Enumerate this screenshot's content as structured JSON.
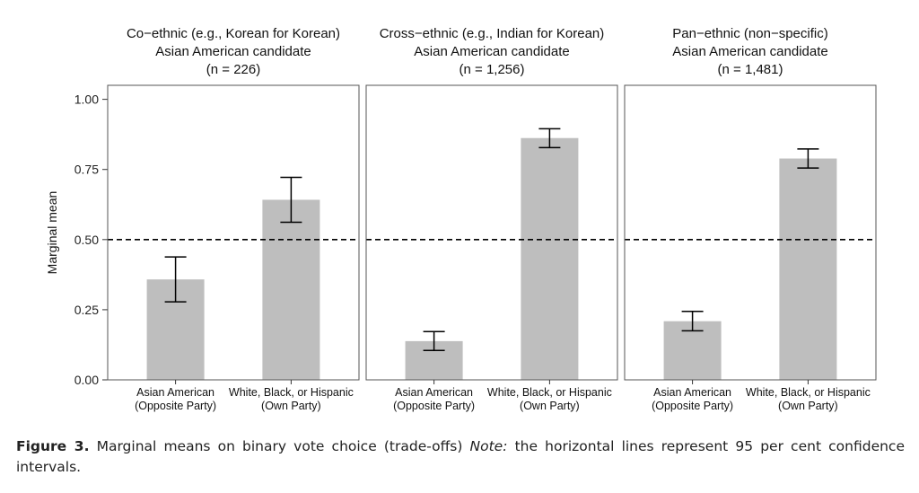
{
  "chart_data": {
    "type": "bar",
    "ylabel": "Marginal mean",
    "ylim": [
      0,
      1.05
    ],
    "yticks": [
      "0.00",
      "0.25",
      "0.50",
      "0.75",
      "1.00"
    ],
    "ytick_values": [
      0,
      0.25,
      0.5,
      0.75,
      1.0
    ],
    "reference_line": 0.5,
    "reference_line_style": "dashed",
    "bar_color": "#bebebe",
    "categories": [
      [
        "Asian American",
        "(Opposite Party)"
      ],
      [
        "White, Black, or Hispanic",
        "(Own Party)"
      ]
    ],
    "panels": [
      {
        "title": [
          "Co−ethnic (e.g., Korean for Korean)",
          "Asian American candidate",
          "(n = 226)"
        ],
        "values": [
          0.358,
          0.642
        ],
        "ci_low": [
          0.278,
          0.562
        ],
        "ci_high": [
          0.438,
          0.722
        ]
      },
      {
        "title": [
          "Cross−ethnic (e.g., Indian for Korean)",
          "Asian American candidate",
          "(n = 1,256)"
        ],
        "values": [
          0.138,
          0.862
        ],
        "ci_low": [
          0.105,
          0.828
        ],
        "ci_high": [
          0.172,
          0.895
        ]
      },
      {
        "title": [
          "Pan−ethnic (non−specific)",
          "Asian American candidate",
          "(n = 1,481)"
        ],
        "values": [
          0.209,
          0.789
        ],
        "ci_low": [
          0.175,
          0.755
        ],
        "ci_high": [
          0.244,
          0.823
        ]
      }
    ]
  },
  "caption": {
    "figure_label": "Figure 3.",
    "text": " Marginal means on binary vote choice (trade-offs) ",
    "note_label": "Note:",
    "note_text": " the horizontal lines represent 95 per cent confidence intervals."
  }
}
